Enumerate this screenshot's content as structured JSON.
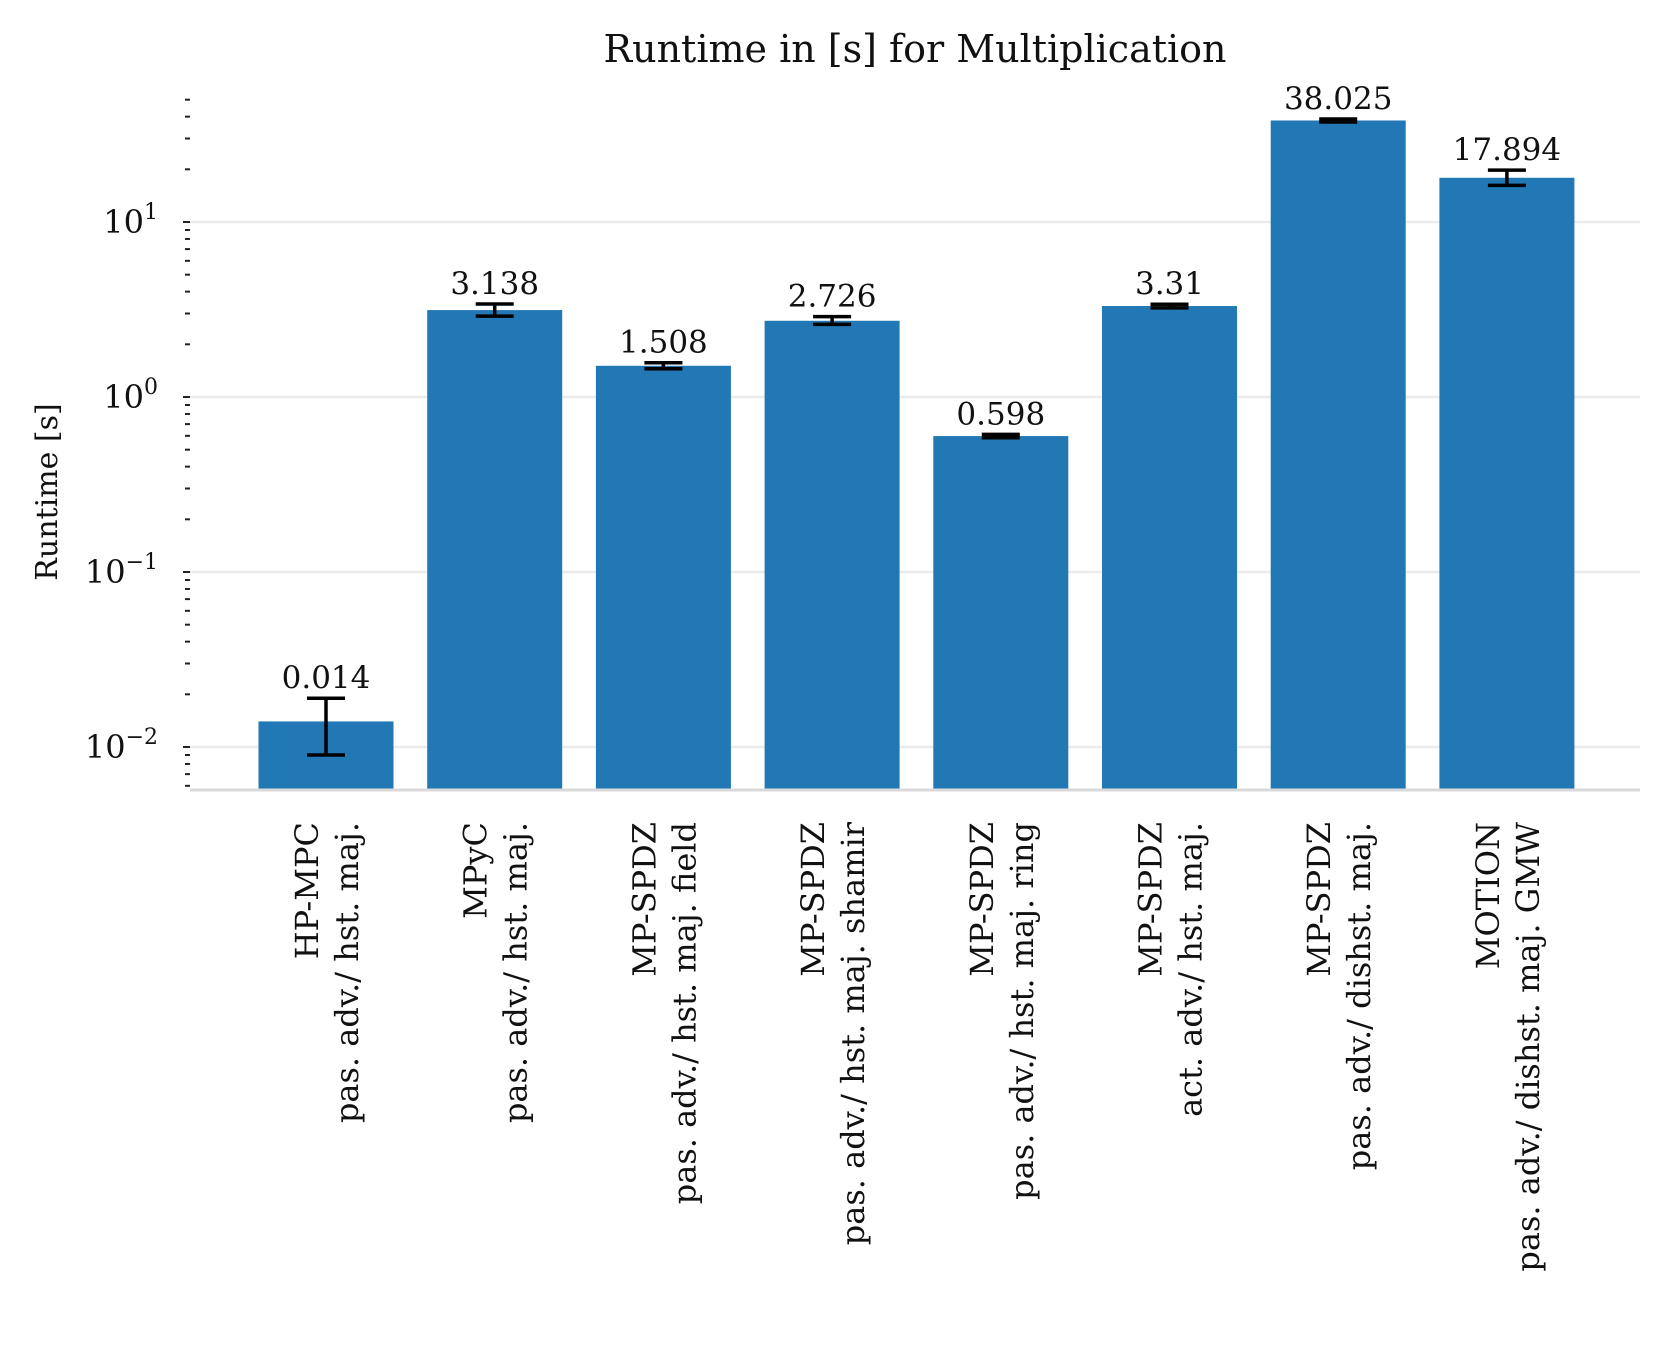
{
  "chart_data": {
    "type": "bar",
    "title": "Runtime in [s] for Multiplication",
    "xlabel": "",
    "ylabel": "Runtime [s]",
    "yscale": "log",
    "ylim": [
      0.006,
      60
    ],
    "grid": "horizontal",
    "categories": [
      {
        "name": "HP-MPC",
        "setting": "pas. adv./ hst. maj."
      },
      {
        "name": "MPyC",
        "setting": "pas. adv./ hst. maj."
      },
      {
        "name": "MP-SPDZ",
        "setting": "pas. adv./ hst. maj. field"
      },
      {
        "name": "MP-SPDZ",
        "setting": "pas. adv./ hst. maj. shamir"
      },
      {
        "name": "MP-SPDZ",
        "setting": "pas. adv./ hst. maj. ring"
      },
      {
        "name": "MP-SPDZ",
        "setting": "act. adv./ hst. maj."
      },
      {
        "name": "MP-SPDZ",
        "setting": "pas. adv./ dishst. maj."
      },
      {
        "name": "MOTION",
        "setting": "pas. adv./ dishst. maj. GMW"
      }
    ],
    "values": [
      0.014,
      3.138,
      1.508,
      2.726,
      0.598,
      3.31,
      38.025,
      17.894
    ],
    "value_labels": [
      "0.014",
      "3.138",
      "1.508",
      "2.726",
      "0.598",
      "3.31",
      "38.025",
      "17.894"
    ],
    "error_low": [
      0.009,
      2.9,
      1.45,
      2.6,
      0.585,
      3.23,
      37.3,
      16.2
    ],
    "error_high": [
      0.019,
      3.4,
      1.57,
      2.88,
      0.612,
      3.39,
      38.8,
      19.8
    ],
    "yticks": [
      {
        "value": 0.01,
        "base": "10",
        "exp": "−2"
      },
      {
        "value": 0.1,
        "base": "10",
        "exp": "−1"
      },
      {
        "value": 1,
        "base": "10",
        "exp": "0"
      },
      {
        "value": 10,
        "base": "10",
        "exp": "1"
      }
    ],
    "colors": {
      "bar": "#2178b4",
      "grid": "#ebebeb",
      "axis": "#d9d9d9",
      "error": "#000000"
    }
  }
}
